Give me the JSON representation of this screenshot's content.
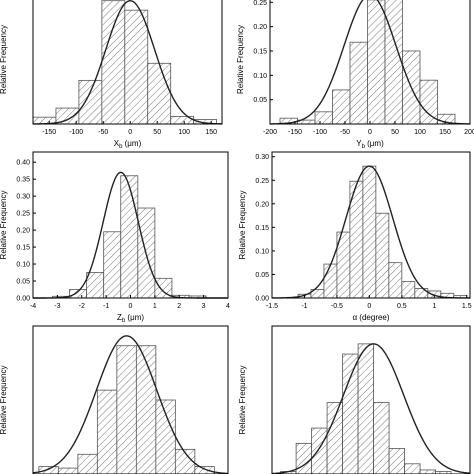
{
  "chart_data": [
    {
      "type": "bar",
      "ylabel": "Relative Frequency",
      "xlabel_main": "X",
      "xlabel_sub": "b",
      "xlabel_unit": " (μm)",
      "xlim": [
        -180,
        170
      ],
      "ylim": [
        0,
        0.34
      ],
      "xticks": [
        -150,
        -100,
        -50,
        0,
        50,
        100,
        150
      ],
      "yticks": [],
      "bin_edges": [
        -180,
        -137.5,
        -95,
        -52.5,
        -10,
        32.5,
        75,
        117.5,
        160
      ],
      "values": [
        0.018,
        0.042,
        0.115,
        0.325,
        0.3,
        0.16,
        0.02,
        0.012
      ],
      "fit": {
        "mean": 0,
        "sd": 45,
        "peak": 0.325
      }
    },
    {
      "type": "bar",
      "ylabel": "Relative Frequency",
      "xlabel_main": "Y",
      "xlabel_sub": "b",
      "xlabel_unit": " (μm)",
      "xlim": [
        -200,
        200
      ],
      "ylim": [
        0,
        0.265
      ],
      "xticks": [
        -200,
        -150,
        -100,
        -50,
        0,
        50,
        100,
        150,
        200
      ],
      "yticks": [
        0.05,
        0.1,
        0.15,
        0.2,
        0.25
      ],
      "ytick_labels": [
        "0.05",
        "0.10",
        "0.15",
        "0.20",
        "0.25"
      ],
      "bin_edges": [
        -180,
        -145,
        -110,
        -75,
        -40,
        -5,
        30,
        65,
        100,
        135,
        170
      ],
      "values": [
        0.012,
        0.008,
        0.025,
        0.07,
        0.168,
        0.255,
        0.26,
        0.15,
        0.09,
        0.02
      ],
      "fit": {
        "mean": 0,
        "sd": 52,
        "peak": 0.265
      }
    },
    {
      "type": "bar",
      "ylabel": "Relative Frequency",
      "xlabel_main": "Z",
      "xlabel_sub": "b",
      "xlabel_unit": " (μm)",
      "xlim": [
        -4,
        4
      ],
      "ylim": [
        0,
        0.43
      ],
      "xticks": [
        -4,
        -3,
        -2,
        -1,
        0,
        1,
        2,
        3,
        4
      ],
      "yticks": [
        0,
        0.05,
        0.1,
        0.15,
        0.2,
        0.25,
        0.3,
        0.35,
        0.4
      ],
      "ytick_labels": [
        "0.00",
        "0.05",
        "0.10",
        "0.15",
        "0.20",
        "0.25",
        "0.30",
        "0.35",
        "0.40"
      ],
      "bin_edges": [
        -3.2,
        -2.5,
        -1.8,
        -1.1,
        -0.4,
        0.3,
        1.0,
        1.7,
        2.4,
        3.1
      ],
      "values": [
        0.005,
        0.025,
        0.075,
        0.195,
        0.36,
        0.265,
        0.058,
        0.008,
        0.006
      ],
      "fit": {
        "mean": -0.4,
        "sd": 0.72,
        "peak": 0.37
      }
    },
    {
      "type": "bar",
      "ylabel": "Relative Frequency",
      "xlabel_main": "α (degree)",
      "xlabel_sub": "",
      "xlabel_unit": "",
      "xlim": [
        -1.5,
        1.55
      ],
      "ylim": [
        0,
        0.31
      ],
      "xticks": [
        -1.5,
        -1.0,
        -0.5,
        0.0,
        0.5,
        1.0,
        1.5
      ],
      "yticks": [
        0,
        0.05,
        0.1,
        0.15,
        0.2,
        0.25,
        0.3
      ],
      "ytick_labels": [
        "0.00",
        "0.05",
        "0.10",
        "0.15",
        "0.20",
        "0.25",
        "0.30"
      ],
      "bin_edges": [
        -1.1,
        -0.9,
        -0.7,
        -0.5,
        -0.3,
        -0.1,
        0.1,
        0.3,
        0.5,
        0.7,
        0.9,
        1.1,
        1.3,
        1.5
      ],
      "values": [
        0.008,
        0.018,
        0.072,
        0.14,
        0.248,
        0.28,
        0.18,
        0.075,
        0.035,
        0.02,
        0.015,
        0.01,
        0.005
      ],
      "fit": {
        "mean": 0,
        "sd": 0.36,
        "peak": 0.28
      }
    },
    {
      "type": "bar",
      "ylabel": "Relative Frequency",
      "xlabel_main": "",
      "xlabel_sub": "",
      "xlabel_unit": "",
      "xlim": [
        -0.5,
        9.5
      ],
      "ylim": [
        0,
        0.3
      ],
      "xticks": [],
      "yticks": [],
      "bin_edges": [
        -0.2,
        0.8,
        1.8,
        2.8,
        3.8,
        4.8,
        5.8,
        6.8,
        7.8,
        8.8
      ],
      "values": [
        0.015,
        0.012,
        0.04,
        0.17,
        0.26,
        0.26,
        0.15,
        0.05,
        0.015
      ],
      "fit": {
        "mean": 4.3,
        "sd": 1.55,
        "peak": 0.28
      }
    },
    {
      "type": "bar",
      "ylabel": "Relative Frequency",
      "xlabel_main": "",
      "xlabel_sub": "",
      "xlabel_unit": "",
      "xlim": [
        -0.5,
        11
      ],
      "ylim": [
        0,
        0.29
      ],
      "xticks": [],
      "yticks": [],
      "bin_edges": [
        0.0,
        0.9,
        1.8,
        2.7,
        3.6,
        4.5,
        5.4,
        6.3,
        7.2,
        8.1,
        9.0,
        9.9
      ],
      "values": [
        0.005,
        0.06,
        0.09,
        0.14,
        0.235,
        0.255,
        0.14,
        0.05,
        0.02,
        0.008,
        0.005
      ],
      "fit": {
        "mean": 5.4,
        "sd": 1.75,
        "peak": 0.255
      }
    }
  ]
}
